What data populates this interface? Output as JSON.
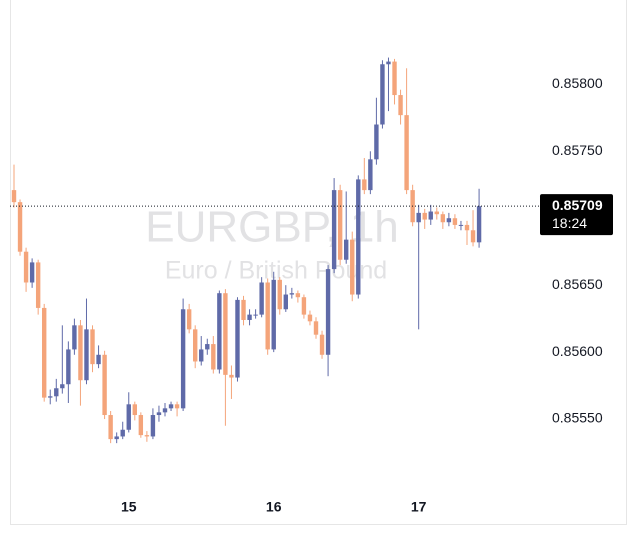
{
  "chart_data": {
    "type": "candlestick",
    "watermark_title": "EURGBP, 1h",
    "watermark_subtitle": "Euro / British Pound",
    "up_color": "#5f6aa8",
    "down_color": "#f4a47a",
    "categories": [
      null,
      null,
      null,
      null,
      null,
      null,
      null,
      null,
      null,
      null,
      null,
      null,
      null,
      null,
      null,
      null,
      null,
      null,
      null,
      "15",
      null,
      null,
      null,
      null,
      null,
      null,
      null,
      null,
      null,
      null,
      null,
      null,
      null,
      null,
      null,
      null,
      null,
      null,
      null,
      null,
      null,
      null,
      null,
      "16",
      null,
      null,
      null,
      null,
      null,
      null,
      null,
      null,
      null,
      null,
      null,
      null,
      null,
      null,
      null,
      null,
      null,
      null,
      null,
      null,
      null,
      null,
      null,
      "17",
      null,
      null,
      null,
      null,
      null,
      null,
      null,
      null,
      null,
      null
    ],
    "open": [
      0.85721,
      0.85712,
      0.85675,
      0.85652,
      0.85667,
      0.85633,
      0.85566,
      0.85567,
      0.85573,
      0.85576,
      0.85602,
      0.8562,
      0.85579,
      0.85617,
      0.85591,
      0.85598,
      0.85553,
      0.85535,
      0.85537,
      0.85542,
      0.85561,
      0.85553,
      0.85538,
      0.85537,
      0.85553,
      0.85555,
      0.85558,
      0.85561,
      0.85558,
      0.85632,
      0.85617,
      0.85593,
      0.85602,
      0.85606,
      0.85587,
      0.85644,
      0.85583,
      0.85581,
      0.85639,
      0.85624,
      0.85628,
      0.85628,
      0.85652,
      0.85602,
      0.85654,
      0.85632,
      0.85643,
      0.85644,
      0.85641,
      0.85628,
      0.85623,
      0.85613,
      0.85598,
      0.85662,
      0.85721,
      0.85669,
      0.85684,
      0.85643,
      0.85729,
      0.85721,
      0.85744,
      0.8577,
      0.85815,
      0.85817,
      0.85792,
      0.85777,
      0.85721,
      0.85697,
      0.85704,
      0.85699,
      0.85705,
      0.85703,
      0.85697,
      0.857,
      0.85695,
      0.85695,
      0.85691,
      0.85682
    ],
    "high": [
      0.8574,
      0.85714,
      0.85678,
      0.8567,
      0.85669,
      0.85636,
      0.85572,
      0.8558,
      0.8562,
      0.85608,
      0.85625,
      0.85624,
      0.8564,
      0.8562,
      0.85605,
      0.85601,
      0.85556,
      0.8554,
      0.85548,
      0.8557,
      0.85563,
      0.85555,
      0.85541,
      0.85558,
      0.8556,
      0.85562,
      0.85563,
      0.85563,
      0.8564,
      0.85636,
      0.8562,
      0.85612,
      0.8561,
      0.85612,
      0.85646,
      0.85647,
      0.8559,
      0.85641,
      0.85642,
      0.85632,
      0.85632,
      0.85656,
      0.85655,
      0.8566,
      0.85656,
      0.8565,
      0.85648,
      0.85646,
      0.85643,
      0.85631,
      0.85626,
      0.85616,
      0.85665,
      0.8573,
      0.85725,
      0.8572,
      0.8569,
      0.85732,
      0.85745,
      0.8575,
      0.8579,
      0.85818,
      0.8582,
      0.85819,
      0.85796,
      0.85812,
      0.85725,
      0.8571,
      0.85707,
      0.8571,
      0.85708,
      0.85705,
      0.85704,
      0.85703,
      0.85698,
      0.85698,
      0.85706,
      0.85722
    ],
    "low": [
      0.85708,
      0.85672,
      0.85645,
      0.85648,
      0.85628,
      0.85563,
      0.85561,
      0.85563,
      0.85569,
      0.85562,
      0.85598,
      0.8556,
      0.85576,
      0.85585,
      0.85588,
      0.8555,
      0.85532,
      0.85532,
      0.85535,
      0.8554,
      0.85549,
      0.85536,
      0.85533,
      0.85535,
      0.85548,
      0.85552,
      0.85556,
      0.85552,
      0.85556,
      0.85614,
      0.85588,
      0.8559,
      0.85598,
      0.85584,
      0.85584,
      0.85545,
      0.85565,
      0.85578,
      0.8562,
      0.8562,
      0.85625,
      0.85626,
      0.85598,
      0.856,
      0.85628,
      0.8563,
      0.8564,
      0.85637,
      0.85625,
      0.8562,
      0.8561,
      0.85595,
      0.85582,
      0.85659,
      0.85665,
      0.85666,
      0.85638,
      0.8564,
      0.85718,
      0.85718,
      0.8574,
      0.85767,
      0.8578,
      0.85785,
      0.8577,
      0.85718,
      0.85694,
      0.85617,
      0.85692,
      0.85695,
      0.85699,
      0.85692,
      0.85694,
      0.85692,
      0.85691,
      0.8568,
      0.85679,
      0.85678
    ],
    "close": [
      0.85712,
      0.85675,
      0.85652,
      0.85667,
      0.85633,
      0.85566,
      0.85567,
      0.85573,
      0.85576,
      0.85602,
      0.8562,
      0.85579,
      0.85617,
      0.85591,
      0.85598,
      0.85553,
      0.85535,
      0.85537,
      0.85542,
      0.85561,
      0.85553,
      0.85538,
      0.85537,
      0.85553,
      0.85555,
      0.85558,
      0.85561,
      0.85558,
      0.85632,
      0.85617,
      0.85593,
      0.85602,
      0.85606,
      0.85587,
      0.85644,
      0.85583,
      0.85581,
      0.85639,
      0.85624,
      0.85628,
      0.85628,
      0.85652,
      0.85602,
      0.85654,
      0.85632,
      0.85643,
      0.85644,
      0.85641,
      0.85628,
      0.85623,
      0.85613,
      0.85598,
      0.85662,
      0.85721,
      0.85669,
      0.85684,
      0.85643,
      0.85729,
      0.85721,
      0.85744,
      0.8577,
      0.85815,
      0.85817,
      0.85792,
      0.85777,
      0.85721,
      0.85697,
      0.85704,
      0.85699,
      0.85705,
      0.85703,
      0.85697,
      0.857,
      0.85695,
      0.85695,
      0.85691,
      0.85682,
      0.85709
    ],
    "ylim": [
      0.85497,
      0.85863
    ],
    "yticks": [
      {
        "value": 0.8555,
        "label": "0.85550"
      },
      {
        "value": 0.856,
        "label": "0.85600"
      },
      {
        "value": 0.8565,
        "label": "0.85650"
      },
      {
        "value": 0.8575,
        "label": "0.85750"
      },
      {
        "value": 0.858,
        "label": "0.85800"
      }
    ],
    "last_price": 0.85709,
    "countdown": "18:24"
  }
}
